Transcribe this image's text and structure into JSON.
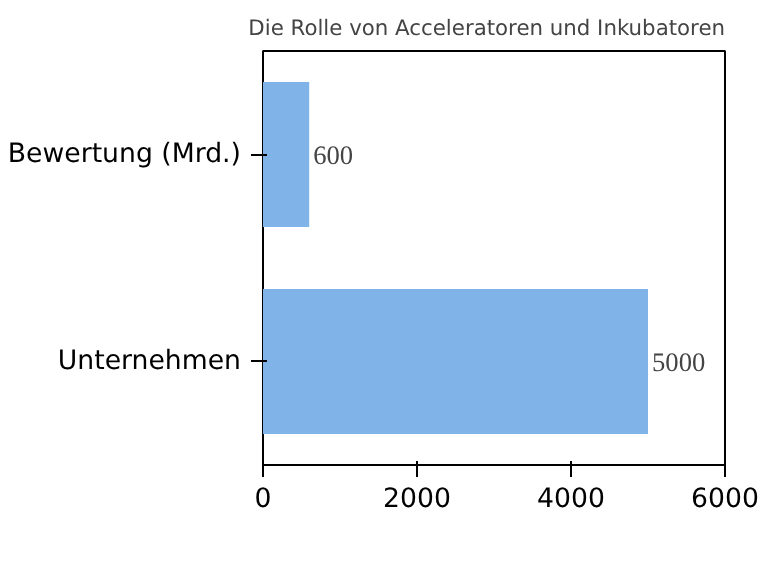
{
  "chart_data": {
    "type": "bar",
    "orientation": "horizontal",
    "title": "Die Rolle von Acceleratoren und Inkubatoren",
    "categories": [
      "Bewertung (Mrd.)",
      "Unternehmen"
    ],
    "values": [
      600,
      5000
    ],
    "color": "#80b3e8",
    "xlim": [
      0,
      6000
    ],
    "xticks": [
      0,
      2000,
      4000,
      6000
    ],
    "data_labels": true,
    "grid": false
  }
}
